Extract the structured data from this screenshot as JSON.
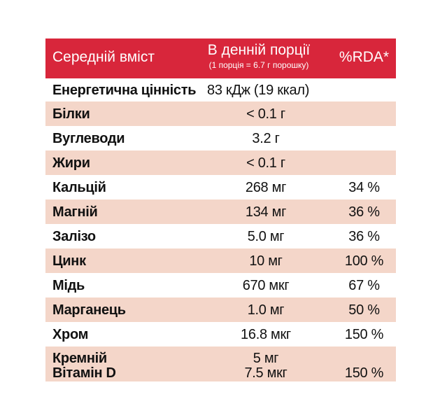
{
  "header": {
    "name": "Середній вміст",
    "amount": "В денній порції",
    "amount_note": "(1 порція = 6.7 г порошку)",
    "rda": "%RDA*"
  },
  "energy": {
    "name": "Енергетична цінність",
    "amount": "83 кДж (19 ккал)"
  },
  "rows": [
    {
      "lines": [
        {
          "name": "Білки",
          "amount": "< 0.1 г"
        }
      ]
    },
    {
      "lines": [
        {
          "name": "Вуглеводи",
          "amount": "3.2 г"
        }
      ]
    },
    {
      "lines": [
        {
          "name": "Жири",
          "amount": "< 0.1 г"
        }
      ]
    },
    {
      "lines": [
        {
          "name": "Кальцій",
          "amount": "268 мг",
          "rda": "34 %"
        }
      ]
    },
    {
      "lines": [
        {
          "name": "Магній",
          "amount": "134 мг",
          "rda": "36 %"
        }
      ]
    },
    {
      "lines": [
        {
          "name": "Залізо",
          "amount": "5.0 мг",
          "rda": "36 %"
        }
      ]
    },
    {
      "lines": [
        {
          "name": "Цинк",
          "amount": "10 мг",
          "rda": "100 %"
        }
      ]
    },
    {
      "lines": [
        {
          "name": "Мідь",
          "amount": "670 мкг",
          "rda": "67 %"
        }
      ]
    },
    {
      "lines": [
        {
          "name": "Марганець",
          "amount": "1.0 мг",
          "rda": "50 %"
        }
      ]
    },
    {
      "lines": [
        {
          "name": "Хром",
          "amount": "16.8 мкг",
          "rda": "150 %"
        }
      ]
    },
    {
      "lines": [
        {
          "name": "Кремній",
          "amount": "5 мг"
        },
        {
          "name": "Вітамін D",
          "amount": "7.5 мкг",
          "rda": "150 %"
        }
      ]
    }
  ]
}
